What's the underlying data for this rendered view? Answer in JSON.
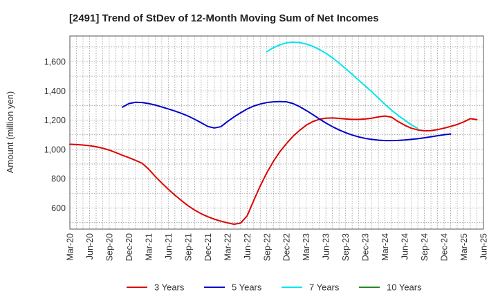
{
  "chart_data": {
    "type": "line",
    "title": "[2491]  Trend of StDev of 12-Month Moving Sum of Net Incomes",
    "ylabel": "Amount (million yen)",
    "xlabel": "",
    "x_ticks": [
      "Mar-20",
      "Jun-20",
      "Sep-20",
      "Dec-20",
      "Mar-21",
      "Jun-21",
      "Sep-21",
      "Dec-21",
      "Mar-22",
      "Jun-22",
      "Sep-22",
      "Dec-22",
      "Mar-23",
      "Jun-23",
      "Sep-23",
      "Dec-23",
      "Mar-24",
      "Jun-24",
      "Sep-24",
      "Dec-24",
      "Mar-25",
      "Jun-25"
    ],
    "y_ticks": [
      600,
      800,
      1000,
      1200,
      1400,
      1600
    ],
    "y_tick_labels": [
      "600",
      "800",
      "1,000",
      "1,200",
      "1,400",
      "1,600"
    ],
    "ylim": [
      455,
      1775
    ],
    "grid": true,
    "legend_position": "bottom",
    "series": [
      {
        "name": "3 Years",
        "color": "#dd0000",
        "points": [
          [
            "Mar-20",
            1035
          ],
          [
            "Apr-20",
            1033
          ],
          [
            "May-20",
            1030
          ],
          [
            "Jun-20",
            1025
          ],
          [
            "Jul-20",
            1018
          ],
          [
            "Aug-20",
            1008
          ],
          [
            "Sep-20",
            995
          ],
          [
            "Oct-20",
            978
          ],
          [
            "Nov-20",
            960
          ],
          [
            "Dec-20",
            943
          ],
          [
            "Jan-21",
            925
          ],
          [
            "Feb-21",
            905
          ],
          [
            "Mar-21",
            865
          ],
          [
            "Apr-21",
            815
          ],
          [
            "May-21",
            770
          ],
          [
            "Jun-21",
            727
          ],
          [
            "Jul-21",
            687
          ],
          [
            "Aug-21",
            650
          ],
          [
            "Sep-21",
            615
          ],
          [
            "Oct-21",
            585
          ],
          [
            "Nov-21",
            560
          ],
          [
            "Dec-21",
            540
          ],
          [
            "Jan-22",
            523
          ],
          [
            "Feb-22",
            509
          ],
          [
            "Mar-22",
            498
          ],
          [
            "Apr-22",
            488
          ],
          [
            "May-22",
            496
          ],
          [
            "Jun-22",
            545
          ],
          [
            "Jul-22",
            650
          ],
          [
            "Aug-22",
            750
          ],
          [
            "Sep-22",
            840
          ],
          [
            "Oct-22",
            918
          ],
          [
            "Nov-22",
            985
          ],
          [
            "Dec-22",
            1040
          ],
          [
            "Jan-23",
            1090
          ],
          [
            "Feb-23",
            1130
          ],
          [
            "Mar-23",
            1165
          ],
          [
            "Apr-23",
            1190
          ],
          [
            "May-23",
            1206
          ],
          [
            "Jun-23",
            1213
          ],
          [
            "Jul-23",
            1215
          ],
          [
            "Aug-23",
            1212
          ],
          [
            "Sep-23",
            1208
          ],
          [
            "Oct-23",
            1205
          ],
          [
            "Nov-23",
            1205
          ],
          [
            "Dec-23",
            1208
          ],
          [
            "Jan-24",
            1213
          ],
          [
            "Feb-24",
            1222
          ],
          [
            "Mar-24",
            1228
          ],
          [
            "Apr-24",
            1220
          ],
          [
            "May-24",
            1190
          ],
          [
            "Jun-24",
            1165
          ],
          [
            "Jul-24",
            1145
          ],
          [
            "Aug-24",
            1133
          ],
          [
            "Sep-24",
            1127
          ],
          [
            "Oct-24",
            1128
          ],
          [
            "Nov-24",
            1135
          ],
          [
            "Dec-24",
            1145
          ],
          [
            "Jan-25",
            1157
          ],
          [
            "Feb-25",
            1170
          ],
          [
            "Mar-25",
            1188
          ],
          [
            "Apr-25",
            1210
          ],
          [
            "May-25",
            1203
          ]
        ]
      },
      {
        "name": "5 Years",
        "color": "#0000cc",
        "points": [
          [
            "Nov-20",
            1288
          ],
          [
            "Dec-20",
            1313
          ],
          [
            "Jan-21",
            1322
          ],
          [
            "Feb-21",
            1320
          ],
          [
            "Mar-21",
            1313
          ],
          [
            "Apr-21",
            1303
          ],
          [
            "May-21",
            1290
          ],
          [
            "Jun-21",
            1276
          ],
          [
            "Jul-21",
            1262
          ],
          [
            "Aug-21",
            1246
          ],
          [
            "Sep-21",
            1228
          ],
          [
            "Oct-21",
            1206
          ],
          [
            "Nov-21",
            1182
          ],
          [
            "Dec-21",
            1157
          ],
          [
            "Jan-22",
            1146
          ],
          [
            "Feb-22",
            1155
          ],
          [
            "Mar-22",
            1190
          ],
          [
            "Apr-22",
            1222
          ],
          [
            "May-22",
            1250
          ],
          [
            "Jun-22",
            1276
          ],
          [
            "Jul-22",
            1296
          ],
          [
            "Aug-22",
            1310
          ],
          [
            "Sep-22",
            1320
          ],
          [
            "Oct-22",
            1325
          ],
          [
            "Nov-22",
            1327
          ],
          [
            "Dec-22",
            1325
          ],
          [
            "Jan-23",
            1313
          ],
          [
            "Feb-23",
            1292
          ],
          [
            "Mar-23",
            1266
          ],
          [
            "Apr-23",
            1238
          ],
          [
            "May-23",
            1208
          ],
          [
            "Jun-23",
            1180
          ],
          [
            "Jul-23",
            1155
          ],
          [
            "Aug-23",
            1133
          ],
          [
            "Sep-23",
            1114
          ],
          [
            "Oct-23",
            1098
          ],
          [
            "Nov-23",
            1085
          ],
          [
            "Dec-23",
            1075
          ],
          [
            "Jan-24",
            1068
          ],
          [
            "Feb-24",
            1063
          ],
          [
            "Mar-24",
            1060
          ],
          [
            "Apr-24",
            1060
          ],
          [
            "May-24",
            1061
          ],
          [
            "Jun-24",
            1064
          ],
          [
            "Jul-24",
            1068
          ],
          [
            "Aug-24",
            1073
          ],
          [
            "Sep-24",
            1079
          ],
          [
            "Oct-24",
            1086
          ],
          [
            "Nov-24",
            1093
          ],
          [
            "Dec-24",
            1100
          ],
          [
            "Jan-25",
            1105
          ]
        ]
      },
      {
        "name": "7 Years",
        "color": "#00e5ee",
        "points": [
          [
            "Sep-22",
            1668
          ],
          [
            "Oct-22",
            1695
          ],
          [
            "Nov-22",
            1715
          ],
          [
            "Dec-22",
            1728
          ],
          [
            "Jan-23",
            1733
          ],
          [
            "Feb-23",
            1730
          ],
          [
            "Mar-23",
            1720
          ],
          [
            "Apr-23",
            1705
          ],
          [
            "May-23",
            1683
          ],
          [
            "Jun-23",
            1657
          ],
          [
            "Jul-23",
            1626
          ],
          [
            "Aug-23",
            1590
          ],
          [
            "Sep-23",
            1552
          ],
          [
            "Oct-23",
            1513
          ],
          [
            "Nov-23",
            1473
          ],
          [
            "Dec-23",
            1433
          ],
          [
            "Jan-24",
            1393
          ],
          [
            "Feb-24",
            1350
          ],
          [
            "Mar-24",
            1308
          ],
          [
            "Apr-24",
            1268
          ],
          [
            "May-24",
            1232
          ],
          [
            "Jun-24",
            1200
          ],
          [
            "Jul-24",
            1168
          ],
          [
            "Aug-24",
            1143
          ]
        ]
      },
      {
        "name": "10 Years",
        "color": "#228b22",
        "points": []
      }
    ]
  }
}
